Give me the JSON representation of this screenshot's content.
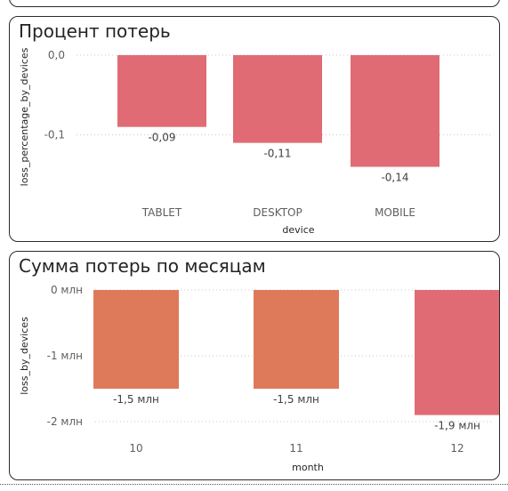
{
  "chart_data": [
    {
      "type": "bar",
      "title": "Процент потерь",
      "xlabel": "device",
      "ylabel": "loss_percentage_by_devices",
      "categories": [
        "TABLET",
        "DESKTOP",
        "MOBILE"
      ],
      "values": [
        -0.09,
        -0.11,
        -0.14
      ],
      "data_labels": [
        "-0,09",
        "-0,11",
        "-0,14"
      ],
      "yticks": [
        0.0,
        -0.1
      ],
      "ytick_labels": [
        "0,0",
        "-0,1"
      ],
      "ylim": [
        -0.155,
        0.0
      ],
      "grid": true,
      "colors": [
        "#E06B75",
        "#E06B75",
        "#E06B75"
      ]
    },
    {
      "type": "bar",
      "title": "Сумма потерь по месяцам",
      "xlabel": "month",
      "ylabel": "loss_by_devices",
      "categories": [
        "10",
        "11",
        "12"
      ],
      "values": [
        -1.5,
        -1.5,
        -1.9
      ],
      "data_labels": [
        "-1,5 млн",
        "-1,5 млн",
        "-1,9 млн"
      ],
      "yticks": [
        0,
        -1,
        -2
      ],
      "ytick_labels": [
        "0 млн",
        "-1 млн",
        "-2 млн"
      ],
      "ylim": [
        -2.0,
        0.0
      ],
      "grid": true,
      "colors": [
        "#DE7A5A",
        "#DE7A5A",
        "#E06B75"
      ]
    }
  ]
}
